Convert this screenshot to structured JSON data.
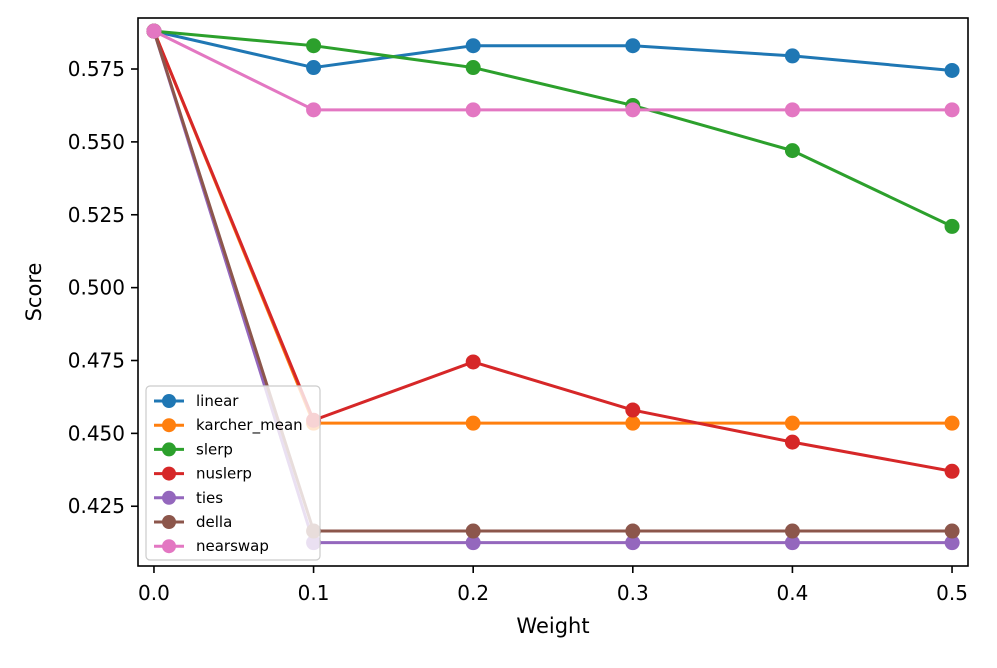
{
  "chart_data": {
    "type": "line",
    "title": "",
    "xlabel": "Weight",
    "ylabel": "Score",
    "x": [
      0.0,
      0.1,
      0.2,
      0.3,
      0.4,
      0.5
    ],
    "xlim": [
      -0.01,
      0.51
    ],
    "ylim": [
      0.4045,
      0.5925
    ],
    "xticks": [
      0.0,
      0.1,
      0.2,
      0.3,
      0.4,
      0.5
    ],
    "xtick_labels": [
      "0.0",
      "0.1",
      "0.2",
      "0.3",
      "0.4",
      "0.5"
    ],
    "yticks": [
      0.425,
      0.45,
      0.475,
      0.5,
      0.525,
      0.55,
      0.575
    ],
    "ytick_labels": [
      "0.425",
      "0.450",
      "0.475",
      "0.500",
      "0.525",
      "0.550",
      "0.575"
    ],
    "grid": false,
    "legend_position": "lower-left",
    "series": [
      {
        "name": "linear",
        "color": "#1f77b4",
        "values": [
          0.588,
          0.5755,
          0.583,
          0.583,
          0.5795,
          0.5745
        ]
      },
      {
        "name": "karcher_mean",
        "color": "#ff7f0e",
        "values": [
          0.588,
          0.4535,
          0.4535,
          0.4535,
          0.4535,
          0.4535
        ]
      },
      {
        "name": "slerp",
        "color": "#2ca02c",
        "values": [
          0.588,
          0.583,
          0.5755,
          0.5625,
          0.547,
          0.521
        ]
      },
      {
        "name": "nuslerp",
        "color": "#d62728",
        "values": [
          0.588,
          0.4545,
          0.4745,
          0.458,
          0.447,
          0.437
        ]
      },
      {
        "name": "ties",
        "color": "#9467bd",
        "values": [
          0.588,
          0.4125,
          0.4125,
          0.4125,
          0.4125,
          0.4125
        ]
      },
      {
        "name": "della",
        "color": "#8c564b",
        "values": [
          0.588,
          0.4165,
          0.4165,
          0.4165,
          0.4165,
          0.4165
        ]
      },
      {
        "name": "nearswap",
        "color": "#e377c2",
        "values": [
          0.588,
          0.561,
          0.561,
          0.561,
          0.561,
          0.561
        ]
      }
    ]
  }
}
